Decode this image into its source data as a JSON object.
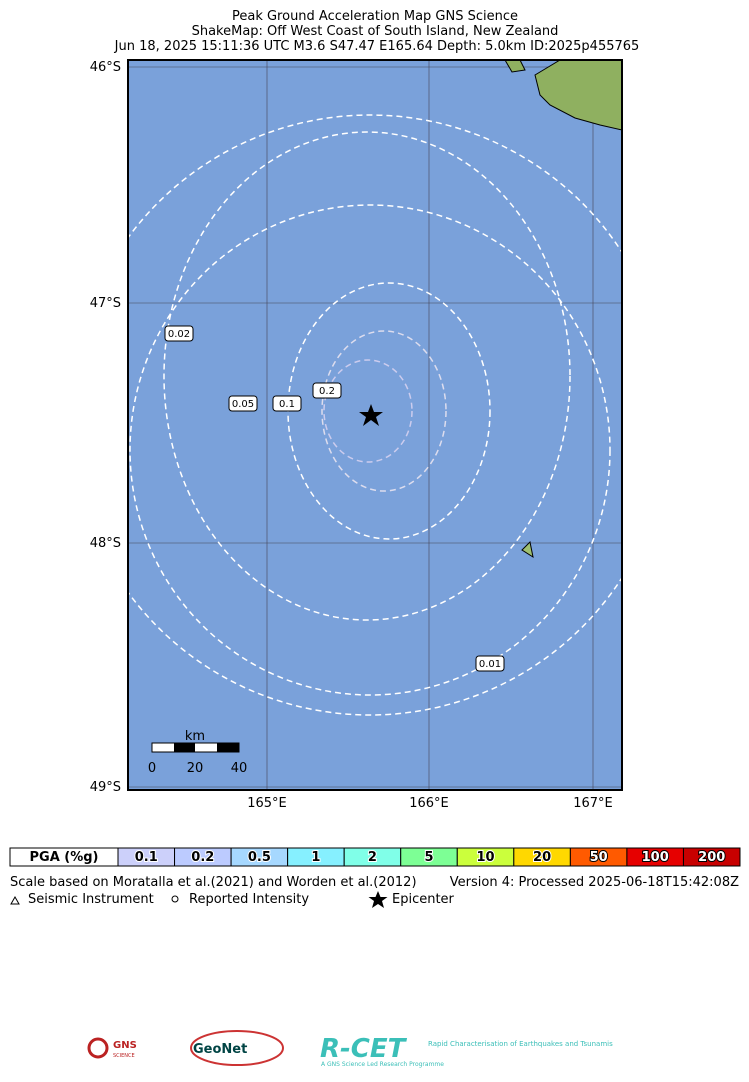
{
  "header": {
    "title": "Peak Ground Acceleration Map GNS Science",
    "subtitle": "ShakeMap: Off West Coast of South Island, New Zealand",
    "event": "Jun 18, 2025 15:11:36 UTC M3.6 S47.47 E165.64 Depth: 5.0km ID:2025p455765"
  },
  "map": {
    "lat_labels": [
      "46°S",
      "47°S",
      "48°S",
      "49°S"
    ],
    "lon_labels": [
      "165°E",
      "166°E",
      "167°E"
    ],
    "contour_labels": [
      "0.02",
      "0.05",
      "0.1",
      "0.2",
      "0.01"
    ],
    "scale_bar": {
      "unit": "km",
      "ticks": [
        "0",
        "20",
        "40"
      ]
    }
  },
  "pga_legend": {
    "title": "PGA (%g)",
    "levels": [
      "0.1",
      "0.2",
      "0.5",
      "1",
      "2",
      "5",
      "10",
      "20",
      "50",
      "100",
      "200"
    ],
    "colors": [
      "#ccd0fa",
      "#bccbff",
      "#a6d8ff",
      "#86f0ff",
      "#80ffe8",
      "#7dff95",
      "#cbff3c",
      "#ffd800",
      "#ff5a00",
      "#e60000",
      "#c80000"
    ]
  },
  "footer": {
    "scale_note": "Scale based on Moratalla et al.(2021) and Worden et al.(2012)",
    "version": "Version 4: Processed 2025-06-18T15:42:08Z",
    "legend": [
      "Seismic Instrument",
      "Reported Intensity",
      "Epicenter"
    ]
  },
  "logos": {
    "gns": "GNS",
    "gns_sub": "SCIENCE",
    "geonet": "GeoNet",
    "rcet": "R-CET",
    "rcet_tag": "Rapid Characterisation of Earthquakes and Tsunamis",
    "rcet_sub": "A GNS Science Led Research Programme"
  }
}
